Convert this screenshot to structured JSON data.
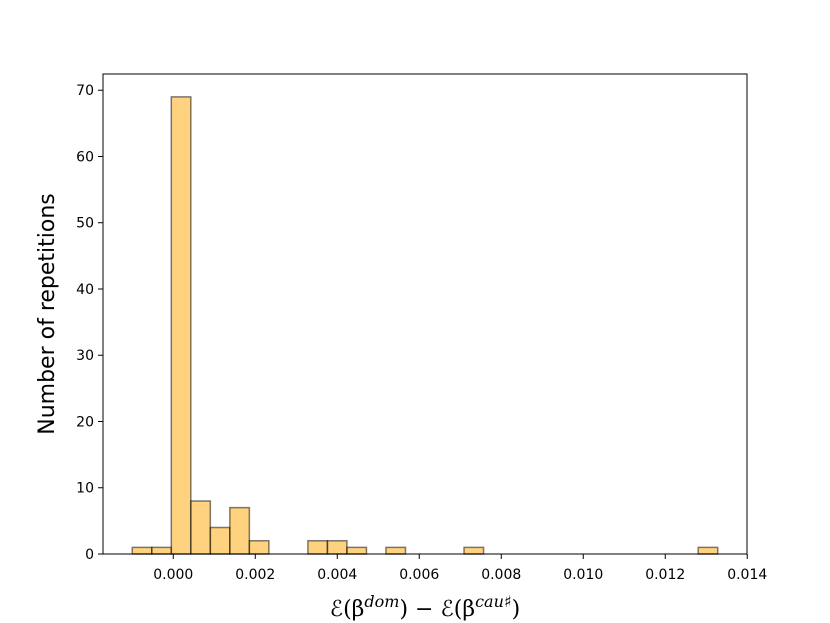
{
  "chart_data": {
    "type": "histogram",
    "bins": [
      -0.001,
      -0.000524,
      -4.8e-05,
      0.000428,
      0.000904,
      0.00138,
      0.001856,
      0.002332,
      0.002808,
      0.003284,
      0.00376,
      0.004236,
      0.004712,
      0.005188,
      0.005664,
      0.00614,
      0.006616,
      0.007092,
      0.007568,
      0.008044,
      0.00852,
      0.008996,
      0.009472,
      0.009948,
      0.010424,
      0.0109,
      0.011376,
      0.011852,
      0.012328,
      0.012804,
      0.01328
    ],
    "counts": [
      1,
      1,
      69,
      8,
      4,
      7,
      2,
      0,
      0,
      2,
      2,
      1,
      0,
      1,
      0,
      0,
      0,
      1,
      0,
      0,
      0,
      0,
      0,
      0,
      0,
      0,
      0,
      0,
      0,
      1
    ],
    "color": "#ffa500",
    "edgecolor": "#000000",
    "alpha": 0.5,
    "xlim": [
      -0.001714,
      0.013994
    ],
    "ylim": [
      0,
      72.45
    ],
    "xticks": [
      {
        "value": 0,
        "label": "0.000"
      },
      {
        "value": 0.002,
        "label": "0.002"
      },
      {
        "value": 0.004,
        "label": "0.004"
      },
      {
        "value": 0.006,
        "label": "0.006"
      },
      {
        "value": 0.008,
        "label": "0.008"
      },
      {
        "value": 0.01,
        "label": "0.010"
      },
      {
        "value": 0.012,
        "label": "0.012"
      },
      {
        "value": 0.014,
        "label": "0.014"
      }
    ],
    "yticks": [
      0,
      10,
      20,
      30,
      40,
      50,
      60,
      70
    ],
    "xlabel": [
      "ℰ(β",
      "dom",
      ") − ℰ(β",
      "cau♯",
      ")"
    ],
    "ylabel": "Number of repetitions"
  }
}
